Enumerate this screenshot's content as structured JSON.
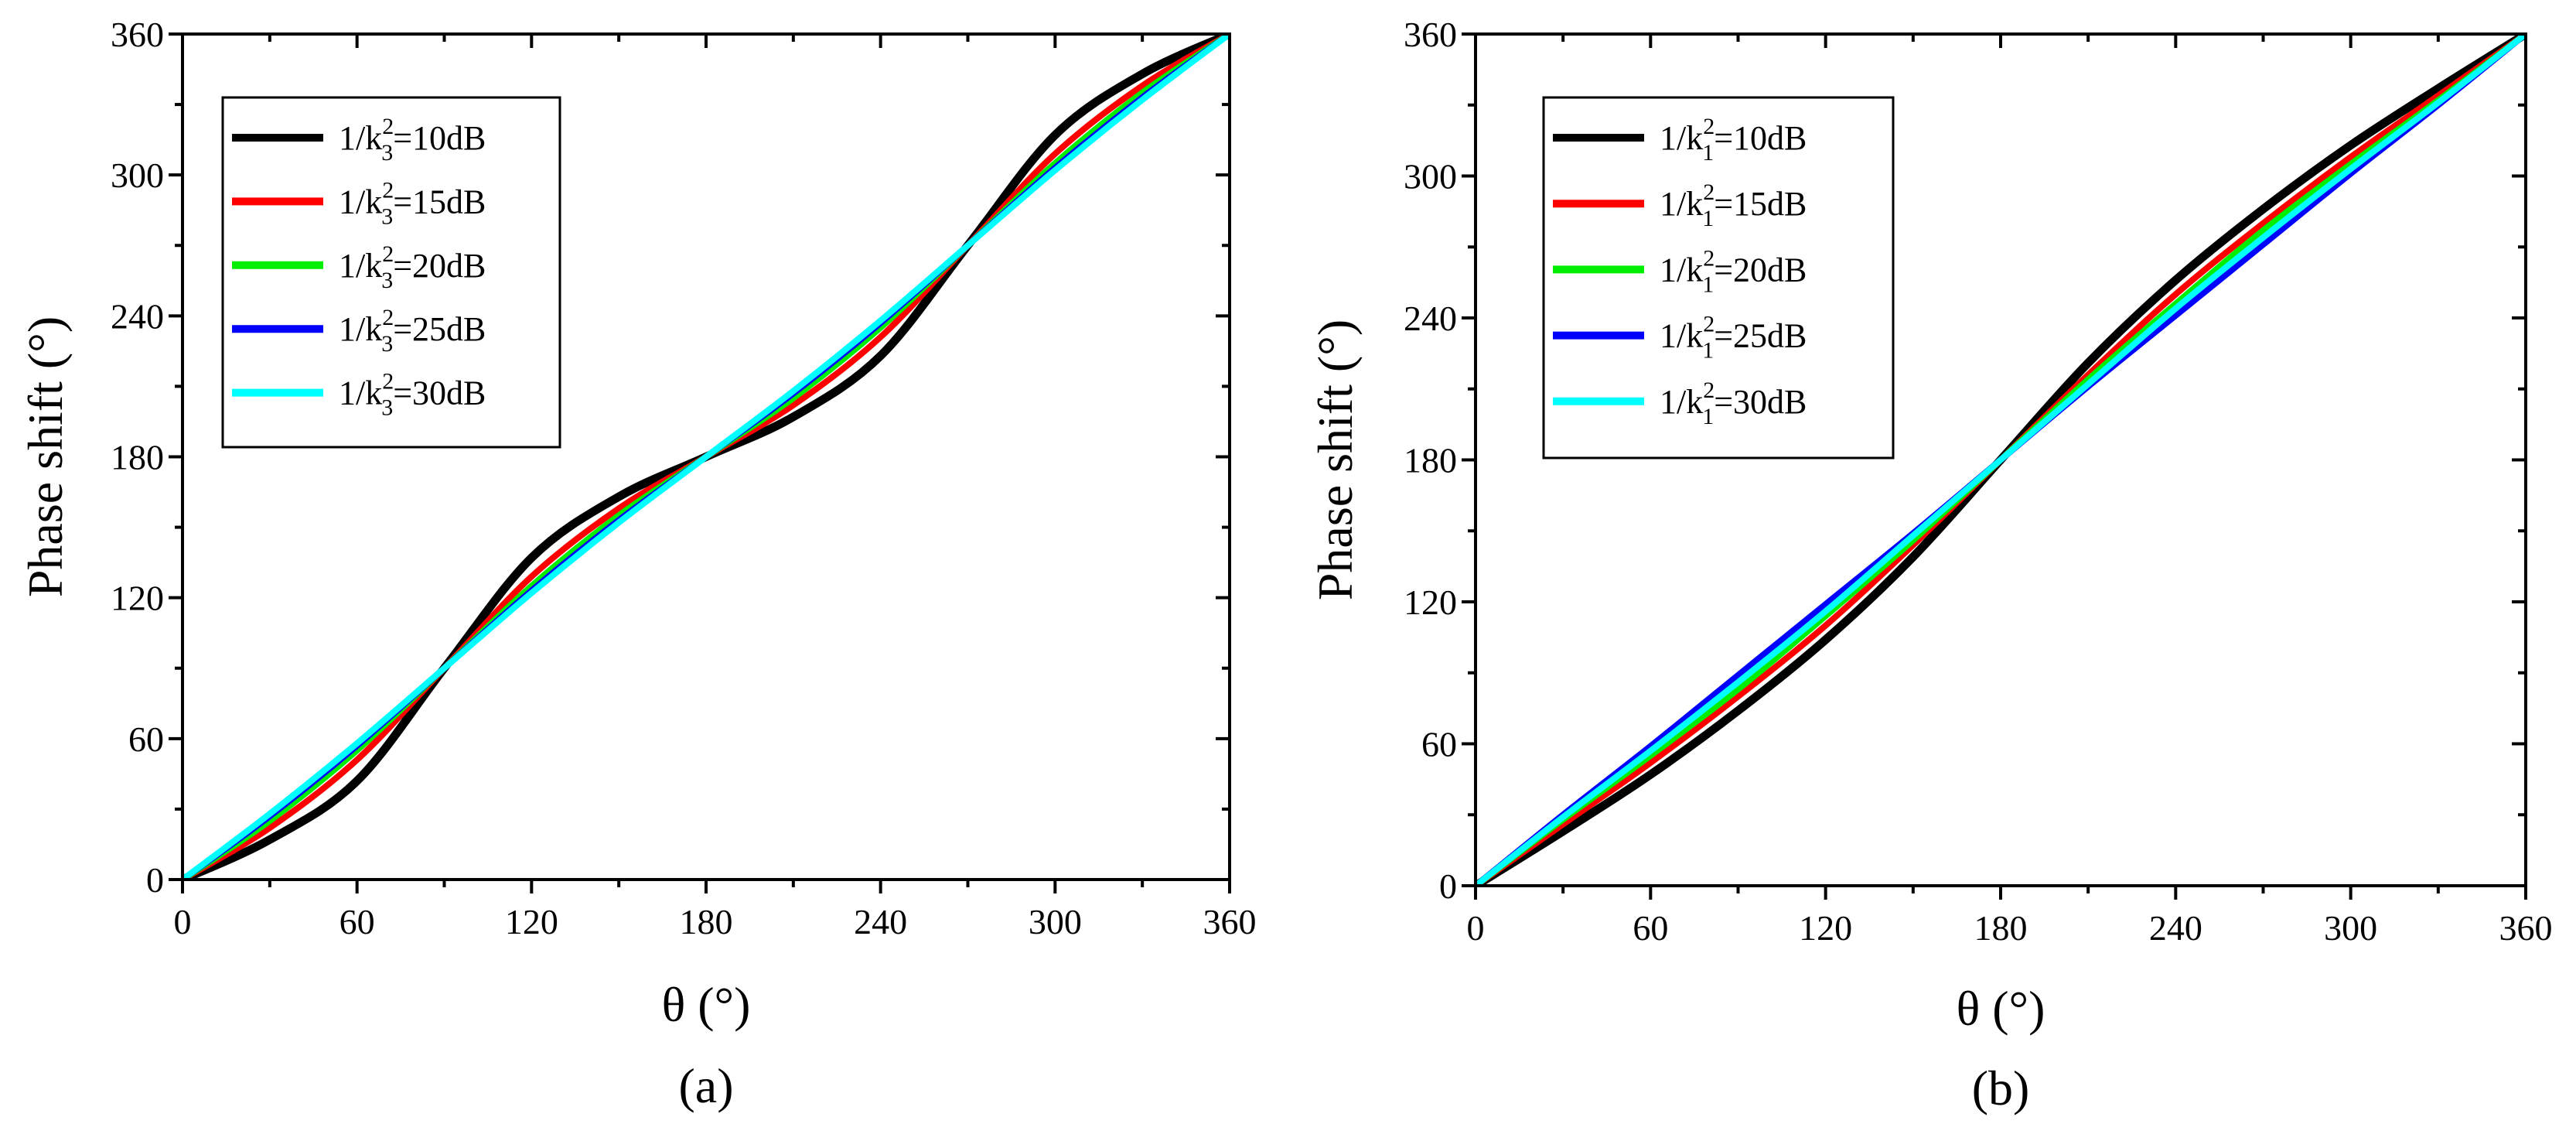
{
  "chart_data": [
    {
      "type": "line",
      "panel_label": "(a)",
      "xlabel": "θ (°)",
      "ylabel": "Phase shift  (°)",
      "xlim": [
        0,
        360
      ],
      "ylim": [
        0,
        360
      ],
      "x_ticks": [
        0,
        60,
        120,
        180,
        240,
        300,
        360
      ],
      "y_ticks": [
        0,
        60,
        120,
        180,
        240,
        300,
        360
      ],
      "x_tick_labels": [
        "0",
        "60",
        "120",
        "180",
        "240",
        "300",
        "360"
      ],
      "y_tick_labels": [
        "0",
        "60",
        "120",
        "180",
        "240",
        "300",
        "360"
      ],
      "legend_position": "top-left",
      "x": [
        0,
        30,
        60,
        90,
        120,
        150,
        180,
        210,
        240,
        270,
        300,
        330,
        360
      ],
      "series": [
        {
          "name": "1/k",
          "sub": "3",
          "sup": "2",
          "tail": "=10dB",
          "color": "#000000",
          "values": [
            0,
            17,
            42,
            90,
            137,
            163,
            180,
            197,
            223,
            270,
            317,
            343,
            360
          ]
        },
        {
          "name": "1/k",
          "sub": "3",
          "sup": "2",
          "tail": "=15dB",
          "color": "#ff0000",
          "values": [
            0,
            22,
            51,
            90,
            129,
            158,
            180,
            202,
            231,
            270,
            309,
            338,
            360
          ]
        },
        {
          "name": "1/k",
          "sub": "3",
          "sup": "2",
          "tail": "=20dB",
          "color": "#00ee00",
          "values": [
            0,
            25,
            55,
            90,
            125,
            155,
            180,
            205,
            235,
            270,
            305,
            335,
            360
          ]
        },
        {
          "name": "1/k",
          "sub": "3",
          "sup": "2",
          "tail": "=25dB",
          "color": "#0000ff",
          "values": [
            0,
            27,
            57,
            90,
            123,
            153,
            180,
            207,
            237,
            270,
            303,
            333,
            360
          ]
        },
        {
          "name": "1/k",
          "sub": "3",
          "sup": "2",
          "tail": "=30dB",
          "color": "#00ffff",
          "values": [
            0,
            28,
            58,
            90,
            122,
            152,
            180,
            208,
            238,
            270,
            302,
            332,
            360
          ]
        }
      ]
    },
    {
      "type": "line",
      "panel_label": "(b)",
      "xlabel": "θ (°)",
      "ylabel": "Phase shift  (°)",
      "xlim": [
        0,
        360
      ],
      "ylim": [
        0,
        360
      ],
      "x_ticks": [
        0,
        60,
        120,
        180,
        240,
        300,
        360
      ],
      "y_ticks": [
        0,
        60,
        120,
        180,
        240,
        300,
        360
      ],
      "x_tick_labels": [
        "0",
        "60",
        "120",
        "180",
        "240",
        "300",
        "360"
      ],
      "y_tick_labels": [
        "0",
        "60",
        "120",
        "180",
        "240",
        "300",
        "360"
      ],
      "legend_position": "top-left",
      "x": [
        0,
        30,
        60,
        90,
        120,
        150,
        180,
        210,
        240,
        270,
        300,
        330,
        360
      ],
      "series": [
        {
          "name": "1/k",
          "sub": "1",
          "sup": "2",
          "tail": "=10dB",
          "color": "#000000",
          "values": [
            0,
            23,
            47,
            74,
            104,
            139,
            180,
            221,
            256,
            286,
            313,
            337,
            360
          ]
        },
        {
          "name": "1/k",
          "sub": "1",
          "sup": "2",
          "tail": "=15dB",
          "color": "#ff0000",
          "values": [
            0,
            26,
            52,
            80,
            110,
            144,
            180,
            216,
            250,
            280,
            308,
            334,
            360
          ]
        },
        {
          "name": "1/k",
          "sub": "1",
          "sup": "2",
          "tail": "=20dB",
          "color": "#00ee00",
          "values": [
            0,
            28,
            55,
            83,
            114,
            146,
            180,
            214,
            246,
            277,
            305,
            332,
            360
          ]
        },
        {
          "name": "1/k",
          "sub": "1",
          "sup": "2",
          "tail": "=25dB",
          "color": "#0000ff",
          "values": [
            0,
            30,
            59,
            89,
            119,
            149,
            180,
            211,
            241,
            271,
            301,
            330,
            360
          ]
        },
        {
          "name": "1/k",
          "sub": "1",
          "sup": "2",
          "tail": "=30dB",
          "color": "#00ffff",
          "values": [
            0,
            29,
            57,
            86,
            116,
            148,
            180,
            212,
            244,
            274,
            303,
            331,
            360
          ]
        }
      ]
    }
  ]
}
